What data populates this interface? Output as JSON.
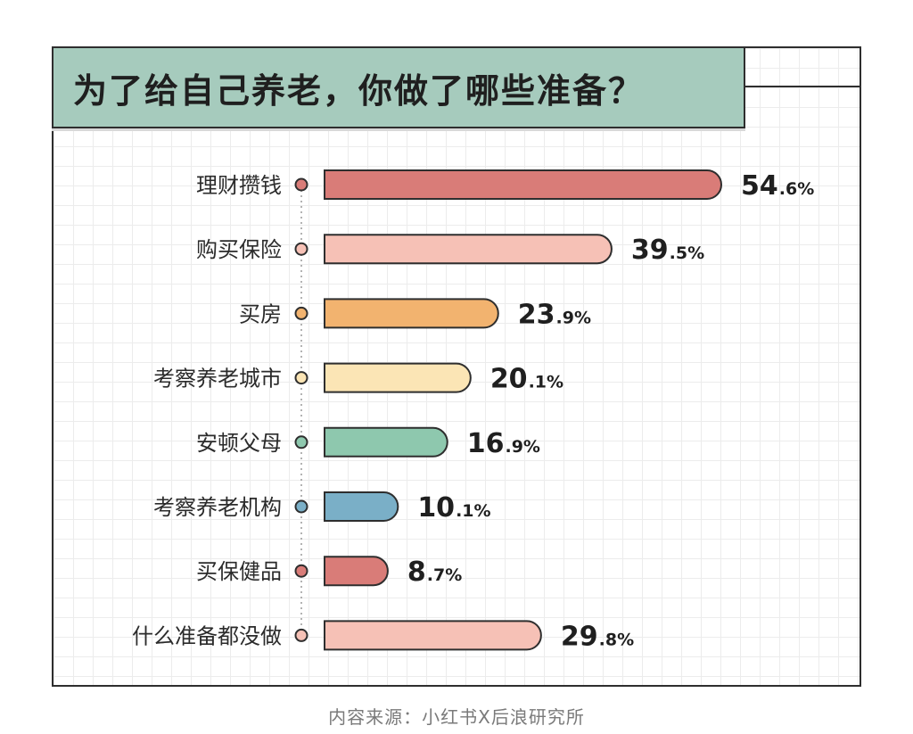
{
  "title": "为了给自己养老，你做了哪些准备？",
  "source": "内容来源：小红书X后浪研究所",
  "chart_data": {
    "type": "bar",
    "orientation": "horizontal",
    "title": "为了给自己养老，你做了哪些准备？",
    "unit": "%",
    "categories": [
      "理财攒钱",
      "购买保险",
      "买房",
      "考察养老城市",
      "安顿父母",
      "考察养老机构",
      "买保健品",
      "什么准备都没做"
    ],
    "values": [
      54.6,
      39.5,
      23.9,
      20.1,
      16.9,
      10.1,
      8.7,
      29.8
    ],
    "value_labels": [
      "54.6%",
      "39.5%",
      "23.9%",
      "20.1%",
      "16.9%",
      "10.1%",
      "8.7%",
      "29.8%"
    ],
    "colors": [
      "#d97c78",
      "#f6c1b6",
      "#f2b36f",
      "#fbe5b5",
      "#8ec8ae",
      "#7aafc7",
      "#d97c78",
      "#f6c1b6"
    ],
    "xlim": [
      0,
      54.6
    ],
    "grid": true,
    "legend": "none"
  }
}
